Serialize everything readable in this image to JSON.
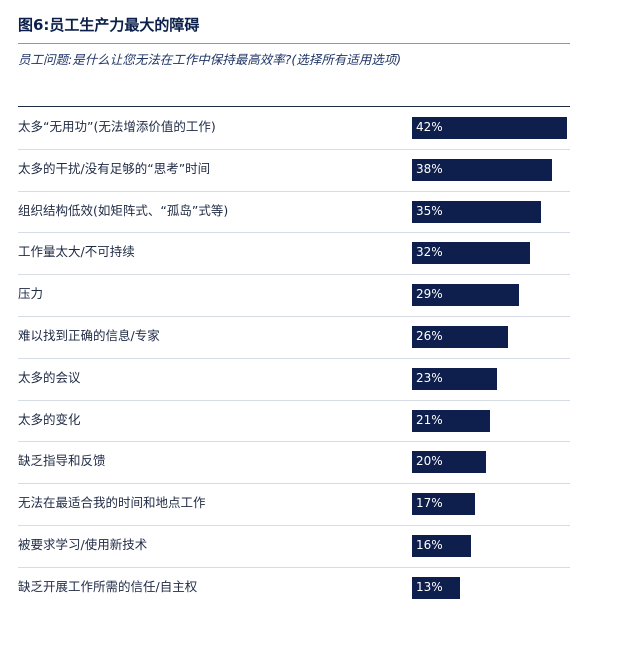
{
  "title": "图6:员工生产力最大的障碍",
  "subtitle": "员工问题:是什么让您无法在工作中保持最高效率?(选择所有适用选项)",
  "colors": {
    "bar": "#0e1f4d",
    "title": "#0b1f4a"
  },
  "chart_data": {
    "type": "bar",
    "orientation": "horizontal",
    "categories": [
      "太多“无用功”(无法增添价值的工作)",
      "太多的干扰/没有足够的“思考”时间",
      "组织结构低效(如矩阵式、“孤岛”式等)",
      "工作量太大/不可持续",
      "压力",
      "难以找到正确的信息/专家",
      "太多的会议",
      "太多的变化",
      "缺乏指导和反馈",
      "无法在最适合我的时间和地点工作",
      "被要求学习/使用新技术",
      "缺乏开展工作所需的信任/自主权"
    ],
    "values": [
      42,
      38,
      35,
      32,
      29,
      26,
      23,
      21,
      20,
      17,
      16,
      13
    ],
    "value_labels": [
      "42%",
      "38%",
      "35%",
      "32%",
      "29%",
      "26%",
      "23%",
      "21%",
      "20%",
      "17%",
      "16%",
      "13%"
    ],
    "xlim": [
      0,
      42
    ]
  }
}
